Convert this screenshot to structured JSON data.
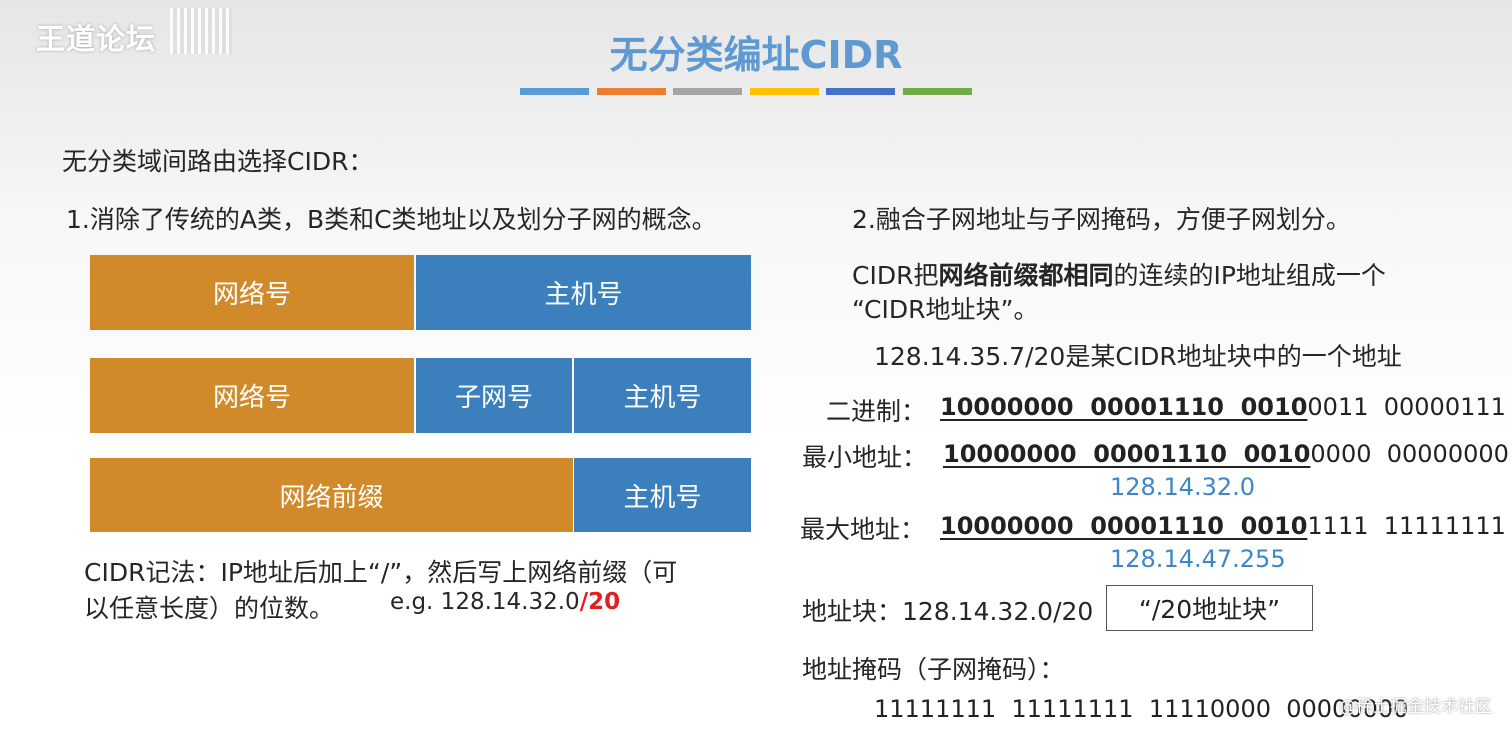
{
  "watermark_top_left": "王道论坛",
  "title": "无分类编址CIDR",
  "title_bar_colors": [
    "#5b9bd5",
    "#ed7d31",
    "#a5a5a5",
    "#ffc000",
    "#4472c4",
    "#70ad47"
  ],
  "intro": "无分类域间路由选择CIDR：",
  "point1": "1.消除了传统的A类，B类和C类地址以及划分子网的概念。",
  "point2": "2.融合子网地址与子网掩码，方便子网划分。",
  "diagram": {
    "row1": {
      "network": "网络号",
      "host": "主机号"
    },
    "row2": {
      "network": "网络号",
      "subnet": "子网号",
      "host": "主机号"
    },
    "row3": {
      "prefix": "网络前缀",
      "host": "主机号"
    }
  },
  "notation": {
    "line1": "CIDR记法：IP地址后加上“/”，然后写上网络前缀（可",
    "line2": "以任意长度）的位数。",
    "example_prefix": "e.g. 128.14.32.0",
    "example_suffix": "/20"
  },
  "cidr_desc": {
    "part1": "CIDR把",
    "bold": "网络前缀都相同",
    "part2": "的连续的IP地址组成一个",
    "line2": "“CIDR地址块”。"
  },
  "example_addr": "128.14.35.7/20是某CIDR地址块中的一个地址",
  "binary": {
    "label": "二进制：",
    "prefix": "10000000  00001110  0010",
    "suffix": "0011  00000111"
  },
  "min_addr": {
    "label": "最小地址：",
    "prefix": "10000000  00001110  0010",
    "suffix": "0000  00000000",
    "dotted": "128.14.32.0"
  },
  "max_addr": {
    "label": "最大地址：",
    "prefix": "10000000  00001110  0010",
    "suffix": "1111  11111111",
    "dotted": "128.14.47.255"
  },
  "block": {
    "label": "地址块：128.14.32.0/20",
    "boxed": "“/20地址块”"
  },
  "mask_label": "地址掩码（子网掩码）：",
  "mask_value": "11111111  11111111  11110000  00000000",
  "watermark_bottom_right": "@稀土掘金技术社区"
}
